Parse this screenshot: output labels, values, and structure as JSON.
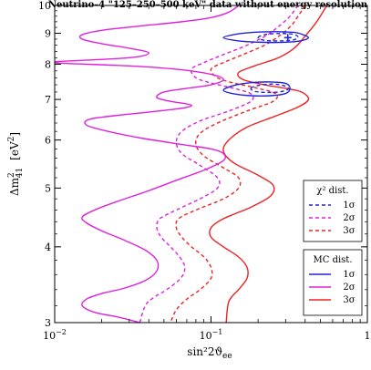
{
  "chart_data": {
    "type": "line",
    "title": "Neutrino–4 \"125–250–500 keV\" data without energy resolution",
    "xlabel": "sin²2ϑ",
    "xlabel_sub": "ee",
    "ylabel_main": "Δm",
    "ylabel_sup": "2",
    "ylabel_sub": "41",
    "ylabel_unit_pre": "[eV",
    "ylabel_unit_sup": "2",
    "ylabel_unit_post": "]",
    "x_scale": "log",
    "y_scale": "log",
    "xlim": [
      0.01,
      1
    ],
    "ylim": [
      3,
      10
    ],
    "x_ticks": [
      {
        "value": 0.01,
        "label": "10",
        "exp": "−2"
      },
      {
        "value": 0.1,
        "label": "10",
        "exp": "−1"
      },
      {
        "value": 1,
        "label": "1",
        "exp": ""
      }
    ],
    "y_ticks": [
      {
        "value": 3,
        "label": "3"
      },
      {
        "value": 4,
        "label": "4"
      },
      {
        "value": 5,
        "label": "5"
      },
      {
        "value": 6,
        "label": "6"
      },
      {
        "value": 7,
        "label": "7"
      },
      {
        "value": 8,
        "label": "8"
      },
      {
        "value": 9,
        "label": "9"
      },
      {
        "value": 10,
        "label": "10"
      }
    ],
    "best_fit": {
      "x": 0.31,
      "y": 8.85
    },
    "legends": [
      {
        "title": "χ² dist.",
        "entries": [
          {
            "label": "1σ",
            "color": "#2222dd",
            "dashed": true
          },
          {
            "label": "2σ",
            "color": "#dd22dd",
            "dashed": true
          },
          {
            "label": "3σ",
            "color": "#ee2222",
            "dashed": true
          }
        ]
      },
      {
        "title": "MC dist.",
        "entries": [
          {
            "label": "1σ",
            "color": "#2222dd",
            "dashed": false
          },
          {
            "label": "2σ",
            "color": "#dd22dd",
            "dashed": false
          },
          {
            "label": "3σ",
            "color": "#ee2222",
            "dashed": false
          }
        ]
      }
    ],
    "series": [
      {
        "kind": "mc-3sigma",
        "color": "#ee2222",
        "dashed": false,
        "closed": false,
        "points": [
          [
            0.55,
            10
          ],
          [
            0.5,
            9.6
          ],
          [
            0.46,
            9.3
          ],
          [
            0.4,
            8.9
          ],
          [
            0.34,
            8.5
          ],
          [
            0.27,
            8.2
          ],
          [
            0.19,
            7.95
          ],
          [
            0.15,
            7.75
          ],
          [
            0.16,
            7.55
          ],
          [
            0.22,
            7.4
          ],
          [
            0.3,
            7.3
          ],
          [
            0.38,
            7.2
          ],
          [
            0.42,
            7.0
          ],
          [
            0.36,
            6.8
          ],
          [
            0.25,
            6.55
          ],
          [
            0.17,
            6.3
          ],
          [
            0.13,
            6.0
          ],
          [
            0.12,
            5.75
          ],
          [
            0.14,
            5.5
          ],
          [
            0.2,
            5.25
          ],
          [
            0.25,
            5.05
          ],
          [
            0.24,
            4.85
          ],
          [
            0.18,
            4.65
          ],
          [
            0.12,
            4.45
          ],
          [
            0.1,
            4.3
          ],
          [
            0.1,
            4.15
          ],
          [
            0.12,
            4.0
          ],
          [
            0.15,
            3.85
          ],
          [
            0.17,
            3.7
          ],
          [
            0.17,
            3.55
          ],
          [
            0.15,
            3.4
          ],
          [
            0.13,
            3.25
          ],
          [
            0.125,
            3.0
          ]
        ]
      },
      {
        "kind": "chi2-3sigma",
        "color": "#ee2222",
        "dashed": true,
        "closed": false,
        "points": [
          [
            0.4,
            10
          ],
          [
            0.36,
            9.6
          ],
          [
            0.33,
            9.3
          ],
          [
            0.28,
            8.95
          ],
          [
            0.22,
            8.6
          ],
          [
            0.16,
            8.3
          ],
          [
            0.12,
            8.05
          ],
          [
            0.1,
            7.85
          ],
          [
            0.11,
            7.6
          ],
          [
            0.14,
            7.45
          ],
          [
            0.2,
            7.3
          ],
          [
            0.26,
            7.15
          ],
          [
            0.25,
            6.95
          ],
          [
            0.17,
            6.7
          ],
          [
            0.11,
            6.4
          ],
          [
            0.085,
            6.15
          ],
          [
            0.08,
            5.9
          ],
          [
            0.09,
            5.65
          ],
          [
            0.12,
            5.4
          ],
          [
            0.15,
            5.2
          ],
          [
            0.15,
            5.0
          ],
          [
            0.12,
            4.8
          ],
          [
            0.08,
            4.6
          ],
          [
            0.062,
            4.45
          ],
          [
            0.06,
            4.3
          ],
          [
            0.065,
            4.15
          ],
          [
            0.075,
            4.0
          ],
          [
            0.09,
            3.85
          ],
          [
            0.1,
            3.7
          ],
          [
            0.1,
            3.55
          ],
          [
            0.085,
            3.4
          ],
          [
            0.07,
            3.28
          ],
          [
            0.06,
            3.15
          ],
          [
            0.055,
            3.0
          ]
        ]
      },
      {
        "kind": "chi2-2sigma",
        "color": "#dd22dd",
        "dashed": true,
        "closed": false,
        "points": [
          [
            0.36,
            10
          ],
          [
            0.32,
            9.6
          ],
          [
            0.28,
            9.3
          ],
          [
            0.23,
            8.95
          ],
          [
            0.17,
            8.6
          ],
          [
            0.12,
            8.3
          ],
          [
            0.09,
            8.05
          ],
          [
            0.075,
            7.85
          ],
          [
            0.08,
            7.6
          ],
          [
            0.1,
            7.45
          ],
          [
            0.14,
            7.3
          ],
          [
            0.18,
            7.15
          ],
          [
            0.18,
            6.95
          ],
          [
            0.13,
            6.7
          ],
          [
            0.085,
            6.45
          ],
          [
            0.065,
            6.2
          ],
          [
            0.06,
            5.95
          ],
          [
            0.065,
            5.7
          ],
          [
            0.085,
            5.45
          ],
          [
            0.11,
            5.2
          ],
          [
            0.11,
            5.0
          ],
          [
            0.085,
            4.8
          ],
          [
            0.06,
            4.6
          ],
          [
            0.047,
            4.45
          ],
          [
            0.045,
            4.3
          ],
          [
            0.048,
            4.15
          ],
          [
            0.055,
            4.0
          ],
          [
            0.063,
            3.85
          ],
          [
            0.068,
            3.7
          ],
          [
            0.064,
            3.55
          ],
          [
            0.052,
            3.4
          ],
          [
            0.043,
            3.3
          ],
          [
            0.038,
            3.2
          ],
          [
            0.035,
            3.0
          ]
        ]
      },
      {
        "kind": "mc-2sigma",
        "color": "#dd22dd",
        "dashed": false,
        "closed": false,
        "points": [
          [
            0.15,
            10
          ],
          [
            0.13,
            9.75
          ],
          [
            0.1,
            9.55
          ],
          [
            0.065,
            9.4
          ],
          [
            0.035,
            9.25
          ],
          [
            0.02,
            9.1
          ],
          [
            0.015,
            8.95
          ],
          [
            0.015,
            8.8
          ],
          [
            0.02,
            8.65
          ],
          [
            0.03,
            8.5
          ],
          [
            0.04,
            8.35
          ],
          [
            0.03,
            8.2
          ],
          [
            0.0105,
            8.08
          ],
          [
            0.01,
            8.04
          ],
          [
            0.03,
            7.95
          ],
          [
            0.06,
            7.85
          ],
          [
            0.1,
            7.7
          ],
          [
            0.12,
            7.55
          ],
          [
            0.1,
            7.4
          ],
          [
            0.07,
            7.3
          ],
          [
            0.05,
            7.2
          ],
          [
            0.045,
            7.05
          ],
          [
            0.055,
            6.95
          ],
          [
            0.075,
            6.85
          ],
          [
            0.06,
            6.75
          ],
          [
            0.03,
            6.62
          ],
          [
            0.017,
            6.5
          ],
          [
            0.016,
            6.35
          ],
          [
            0.022,
            6.2
          ],
          [
            0.035,
            6.05
          ],
          [
            0.065,
            5.9
          ],
          [
            0.1,
            5.8
          ],
          [
            0.12,
            5.7
          ],
          [
            0.12,
            5.55
          ],
          [
            0.09,
            5.35
          ],
          [
            0.06,
            5.15
          ],
          [
            0.04,
            4.95
          ],
          [
            0.025,
            4.75
          ],
          [
            0.018,
            4.6
          ],
          [
            0.015,
            4.48
          ],
          [
            0.016,
            4.38
          ],
          [
            0.02,
            4.25
          ],
          [
            0.028,
            4.1
          ],
          [
            0.038,
            3.95
          ],
          [
            0.045,
            3.8
          ],
          [
            0.045,
            3.65
          ],
          [
            0.038,
            3.52
          ],
          [
            0.028,
            3.42
          ],
          [
            0.02,
            3.35
          ],
          [
            0.016,
            3.28
          ],
          [
            0.015,
            3.2
          ],
          [
            0.018,
            3.12
          ],
          [
            0.026,
            3.06
          ],
          [
            0.035,
            3.0
          ]
        ]
      },
      {
        "kind": "mc-1sigma-upper",
        "color": "#2222dd",
        "dashed": false,
        "closed": true,
        "points": [
          [
            0.12,
            8.85
          ],
          [
            0.15,
            8.98
          ],
          [
            0.2,
            9.04
          ],
          [
            0.27,
            9.05
          ],
          [
            0.35,
            9.02
          ],
          [
            0.4,
            8.92
          ],
          [
            0.42,
            8.85
          ],
          [
            0.4,
            8.78
          ],
          [
            0.35,
            8.72
          ],
          [
            0.27,
            8.69
          ],
          [
            0.2,
            8.7
          ],
          [
            0.15,
            8.74
          ]
        ]
      },
      {
        "kind": "mc-1sigma-lower",
        "color": "#2222dd",
        "dashed": false,
        "closed": true,
        "points": [
          [
            0.12,
            7.25
          ],
          [
            0.14,
            7.38
          ],
          [
            0.18,
            7.46
          ],
          [
            0.24,
            7.48
          ],
          [
            0.3,
            7.44
          ],
          [
            0.32,
            7.3
          ],
          [
            0.3,
            7.16
          ],
          [
            0.24,
            7.1
          ],
          [
            0.18,
            7.1
          ],
          [
            0.14,
            7.15
          ]
        ]
      },
      {
        "kind": "chi2-1sigma-upper",
        "color": "#2222dd",
        "dashed": true,
        "closed": true,
        "points": [
          [
            0.2,
            8.85
          ],
          [
            0.22,
            8.95
          ],
          [
            0.27,
            8.99
          ],
          [
            0.33,
            8.97
          ],
          [
            0.36,
            8.88
          ],
          [
            0.34,
            8.78
          ],
          [
            0.28,
            8.74
          ],
          [
            0.22,
            8.76
          ]
        ]
      },
      {
        "kind": "chi2-1sigma-lower",
        "color": "#2222dd",
        "dashed": true,
        "closed": true,
        "points": [
          [
            0.18,
            7.3
          ],
          [
            0.2,
            7.38
          ],
          [
            0.25,
            7.42
          ],
          [
            0.3,
            7.36
          ],
          [
            0.31,
            7.27
          ],
          [
            0.27,
            7.2
          ],
          [
            0.22,
            7.19
          ],
          [
            0.19,
            7.22
          ]
        ]
      }
    ]
  }
}
